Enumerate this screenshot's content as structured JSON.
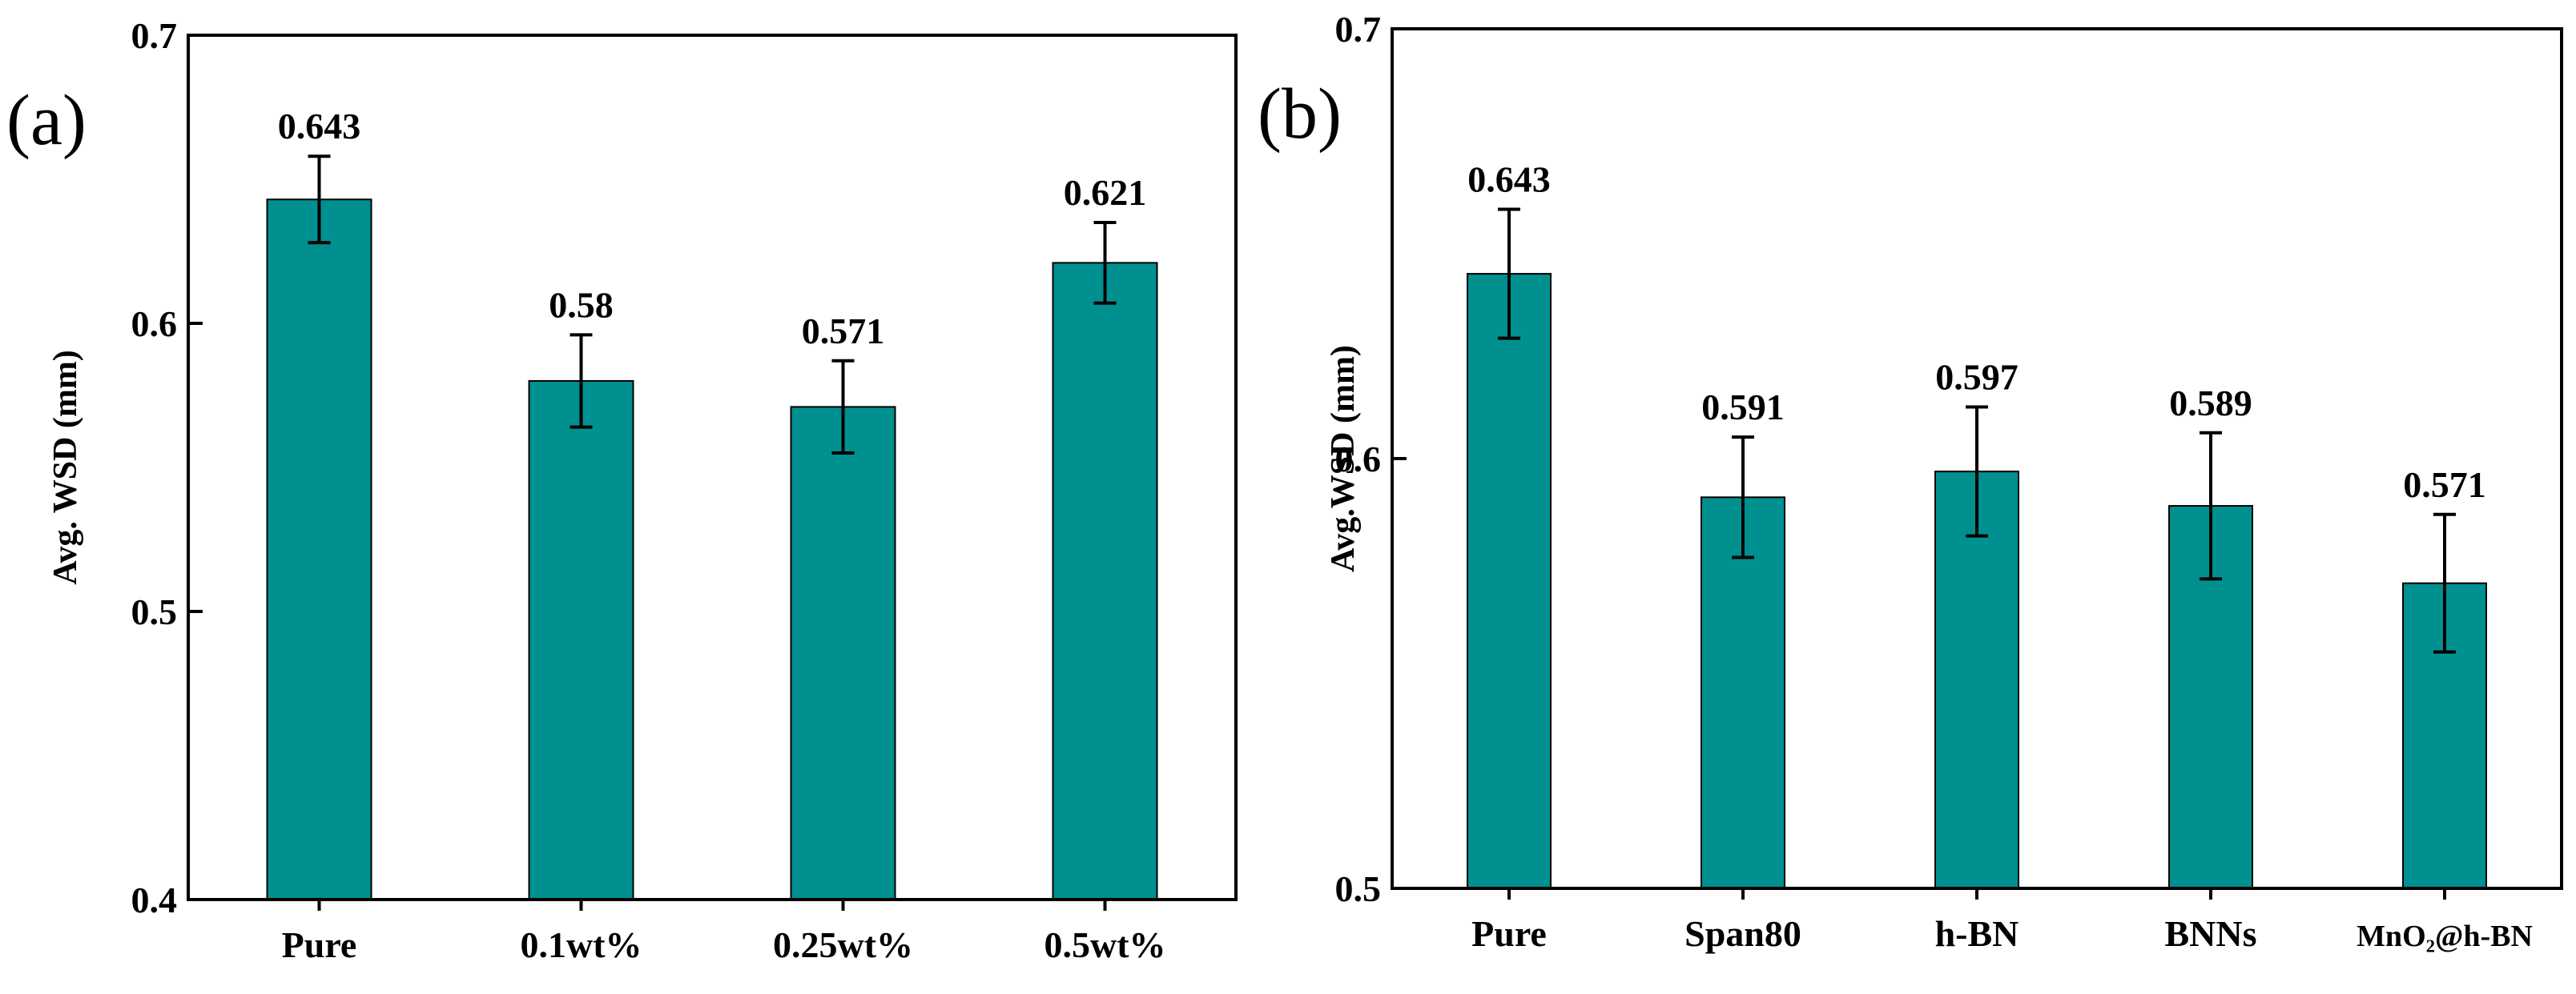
{
  "chart_data": [
    {
      "panel": "(a)",
      "type": "bar",
      "ylabel": "Avg. WSD (mm)",
      "xlabel": "",
      "ylim": [
        0.4,
        0.7
      ],
      "yticks": [
        "0.4",
        "0.5",
        "0.6",
        "0.7"
      ],
      "categories": [
        "Pure",
        "0.1wt%",
        "0.25wt%",
        "0.5wt%"
      ],
      "values": [
        0.643,
        0.58,
        0.571,
        0.621
      ],
      "value_labels": [
        "0.643",
        "0.58",
        "0.571",
        "0.621"
      ],
      "errors": [
        0.015,
        0.016,
        0.016,
        0.014
      ],
      "color": "#00908f"
    },
    {
      "panel": "(b)",
      "type": "bar",
      "ylabel": "Avg.WSD (mm)",
      "xlabel": "",
      "ylim": [
        0.5,
        0.7
      ],
      "yticks": [
        "0.5",
        "0.6",
        "0.7"
      ],
      "categories": [
        "Pure",
        "Span80",
        "h-BN",
        "BNNs",
        "MnO₂@h-BN"
      ],
      "values": [
        0.643,
        0.591,
        0.597,
        0.589,
        0.571
      ],
      "value_labels": [
        "0.643",
        "0.591",
        "0.597",
        "0.589",
        "0.571"
      ],
      "errors": [
        0.015,
        0.014,
        0.015,
        0.017,
        0.016
      ],
      "color": "#00908f"
    }
  ]
}
